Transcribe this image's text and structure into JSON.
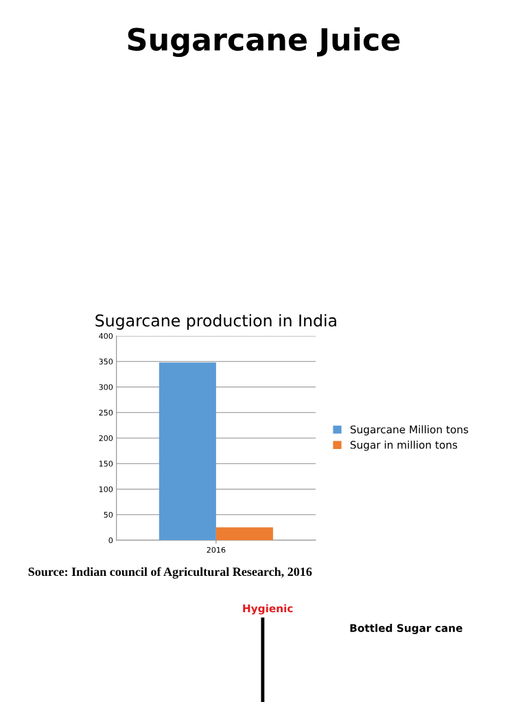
{
  "chart_data": {
    "type": "bar",
    "title": "Sugarcane production in India",
    "categories": [
      "2016"
    ],
    "series": [
      {
        "name": "Sugarcane Million tons",
        "color": "#5b9bd5",
        "values": [
          348
        ]
      },
      {
        "name": "Sugar in million tons",
        "color": "#ed7d31",
        "values": [
          25
        ]
      }
    ],
    "ylim": [
      0,
      400
    ],
    "yticks": [
      0,
      50,
      100,
      150,
      200,
      250,
      300,
      350,
      400
    ],
    "grid": "y",
    "legend": "right",
    "annotations": [
      "Sugarcane Juice",
      "Source: Indian council of Agricultural Research, 2016",
      "Hygienic",
      "Bottled Sugar cane"
    ]
  }
}
